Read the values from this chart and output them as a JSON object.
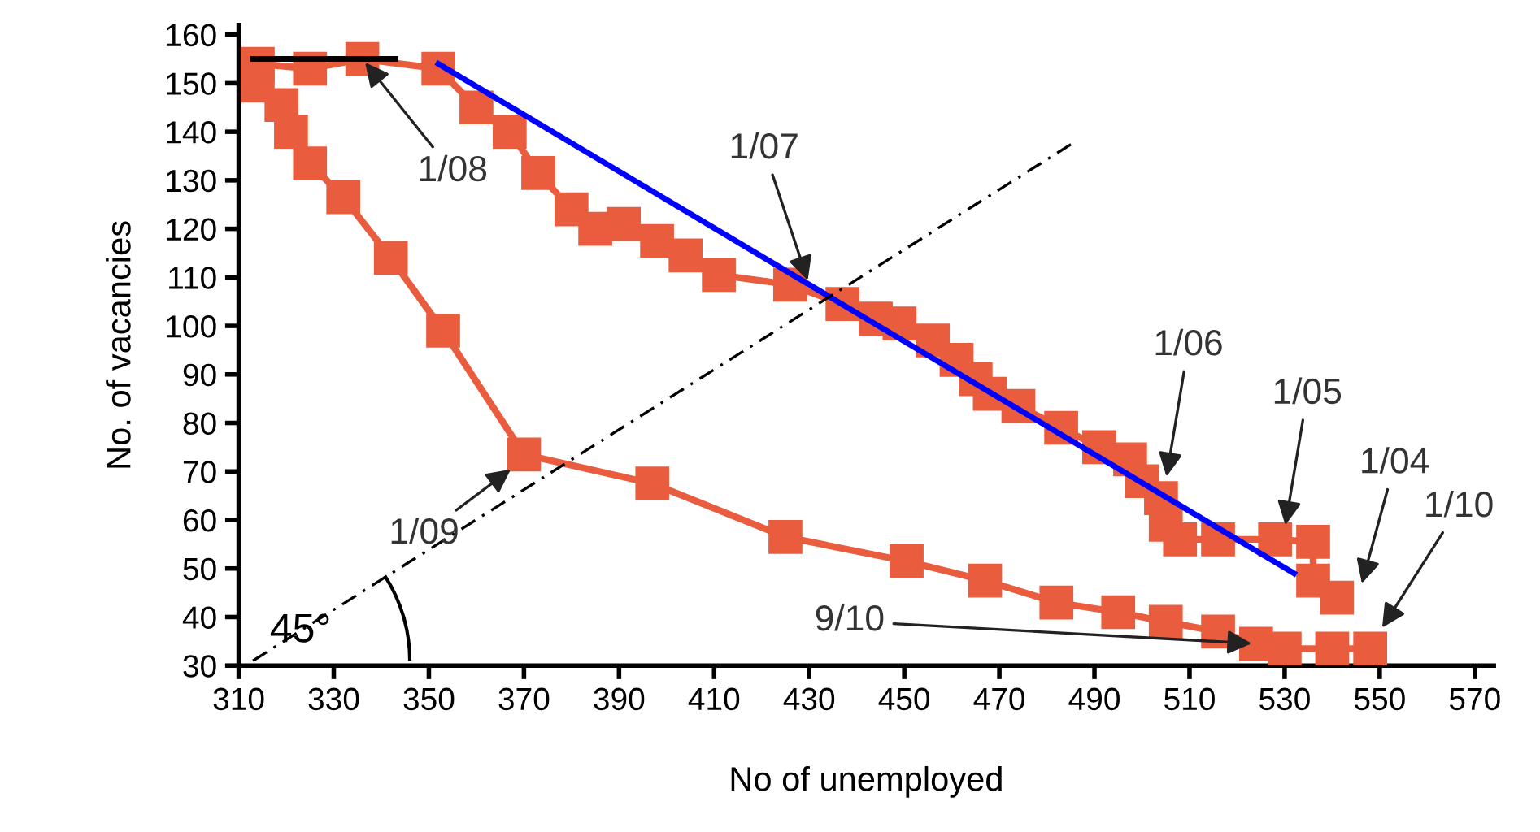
{
  "chart_data": {
    "type": "line",
    "xlabel": "No of unemployed",
    "ylabel": "No. of vacancies",
    "series": [
      {
        "color": "#e95c3e",
        "marker": "square",
        "line_style": "solid",
        "x": [
          541,
          536,
          536,
          528,
          516,
          508,
          505,
          504,
          500,
          497.5,
          491,
          483,
          474,
          468,
          465,
          461,
          456,
          449,
          444,
          437,
          426,
          411,
          404,
          398,
          391,
          385,
          380,
          373,
          367,
          360,
          352,
          336,
          325,
          314,
          314,
          319,
          321,
          325,
          332,
          342,
          353,
          370,
          397,
          425,
          450.5,
          467,
          482,
          495,
          505,
          516,
          524,
          530,
          540,
          548
        ],
        "values": [
          44,
          47.5,
          55.5,
          56,
          56,
          56,
          59,
          64.5,
          68,
          72.5,
          75,
          79,
          83.5,
          86,
          89,
          93,
          97,
          100.5,
          101.5,
          104.5,
          108.5,
          110.5,
          114.5,
          117.5,
          121,
          120,
          124,
          131.5,
          140,
          145,
          153,
          155,
          153,
          154,
          149.5,
          145.5,
          140,
          133.5,
          126.5,
          114,
          99,
          73.5,
          67.5,
          56.5,
          51.5,
          47.5,
          43,
          41,
          39,
          37,
          34.5,
          33.5,
          33.5,
          33.5
        ]
      },
      {
        "color": "#0000ff",
        "marker": "none",
        "line_style": "solid",
        "x": [
          352,
          532
        ],
        "values": [
          154,
          49
        ]
      },
      {
        "color": "#000000",
        "marker": "none",
        "line_style": "solid",
        "x": [
          313,
          343
        ],
        "values": [
          155,
          155
        ]
      },
      {
        "color": "#000000",
        "marker": "none",
        "line_style": "dashed",
        "x": [
          313,
          486
        ],
        "values": [
          31,
          138
        ]
      }
    ],
    "xlim": [
      310,
      574
    ],
    "ylim": [
      30,
      162
    ],
    "xticks": [
      310,
      330,
      350,
      370,
      390,
      410,
      430,
      450,
      470,
      490,
      510,
      530,
      550,
      570
    ],
    "yticks": [
      30,
      40,
      50,
      60,
      70,
      80,
      90,
      100,
      110,
      120,
      130,
      140,
      150,
      160
    ],
    "grid": false,
    "annotations": [
      {
        "text": "1/08",
        "x": 336,
        "y": 155
      },
      {
        "text": "1/07",
        "x": 430,
        "y": 108.5
      },
      {
        "text": "1/06",
        "x": 505,
        "y": 68
      },
      {
        "text": "1/05",
        "x": 530,
        "y": 58
      },
      {
        "text": "1/04",
        "x": 546,
        "y": 46
      },
      {
        "text": "1/10",
        "x": 550,
        "y": 37
      },
      {
        "text": "1/09",
        "x": 368,
        "y": 71
      },
      {
        "text": "9/10",
        "x": 524,
        "y": 34.5
      },
      {
        "text": "45°",
        "x": 323,
        "y": 37
      }
    ]
  }
}
